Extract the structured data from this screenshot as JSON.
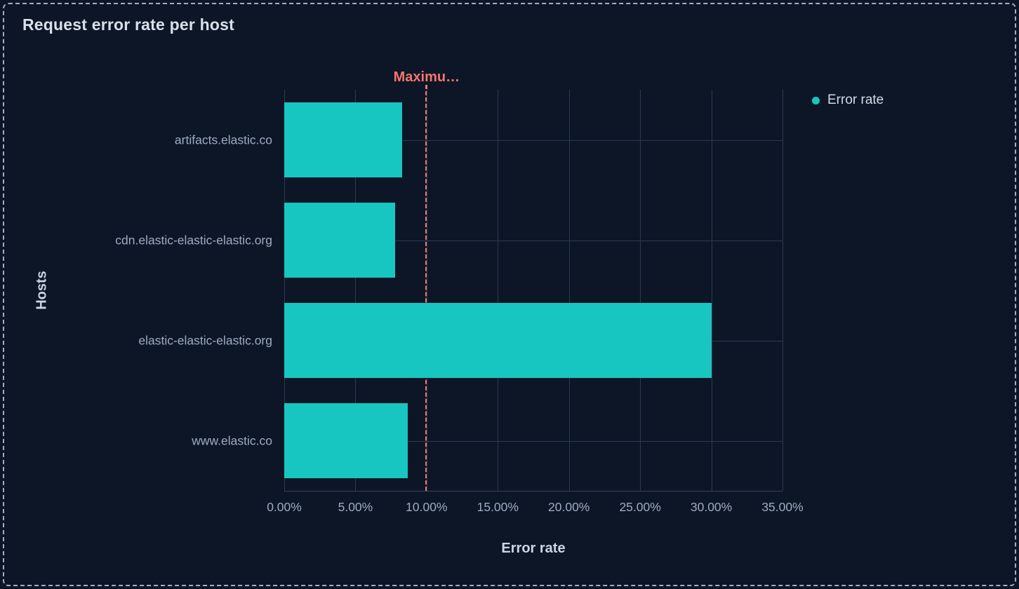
{
  "panel": {
    "title": "Request error rate per host",
    "background_color": "#0d1626",
    "border_color": "#9db0cb"
  },
  "legend": {
    "position": "right",
    "items": [
      {
        "label": "Error rate",
        "color": "#17c6c1",
        "swatch": "circle"
      }
    ]
  },
  "chart_data": {
    "type": "bar",
    "orientation": "horizontal",
    "title": "Request error rate per host",
    "xlabel": "Error rate",
    "ylabel": "Hosts",
    "categories": [
      "artifacts.elastic.co",
      "cdn.elastic-elastic-elastic.org",
      "elastic-elastic-elastic.org",
      "www.elastic.co"
    ],
    "series": [
      {
        "name": "Error rate",
        "color": "#17c6c1",
        "values": [
          8.3,
          7.8,
          30.0,
          8.7
        ]
      }
    ],
    "value_unit": "%",
    "xlim": [
      0,
      35
    ],
    "x_tick_values": [
      0,
      5,
      10,
      15,
      20,
      25,
      30,
      35
    ],
    "x_tick_labels": [
      "0.00%",
      "5.00%",
      "10.00%",
      "15.00%",
      "20.00%",
      "25.00%",
      "30.00%",
      "35.00%"
    ],
    "grid": true,
    "legend_position": "right",
    "threshold": {
      "label": "Maximu…",
      "value": 10,
      "color": "#f4756d",
      "style": "dashed"
    }
  },
  "colors": {
    "background": "#0d1626",
    "bar": "#17c6c1",
    "gridline": "#2a3a54",
    "axis_text": "#9dabc3",
    "axis_title_text": "#ccd5e2",
    "panel_title_text": "#d9e0eb",
    "threshold": "#f4756d",
    "panel_border": "#9db0cb"
  }
}
